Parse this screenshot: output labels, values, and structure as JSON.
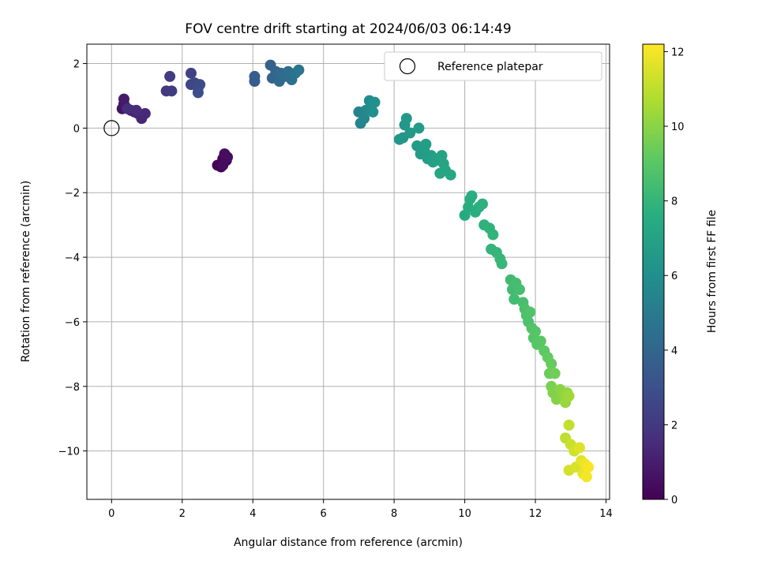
{
  "chart_data": {
    "type": "scatter",
    "title": "FOV centre drift starting at 2024/06/03 06:14:49",
    "xlabel": "Angular distance from reference (arcmin)",
    "ylabel": "Rotation from reference (arcmin)",
    "xlim": [
      -0.7,
      14.1
    ],
    "ylim": [
      -11.5,
      2.6
    ],
    "xticks": [
      0,
      2,
      4,
      6,
      8,
      10,
      12,
      14
    ],
    "yticks": [
      2,
      0,
      -2,
      -4,
      -6,
      -8,
      -10
    ],
    "grid": true,
    "legend": {
      "placement": "top-right",
      "entries": [
        "Reference platepar"
      ]
    },
    "reference_point": {
      "x": 0,
      "y": 0,
      "label": "Reference platepar"
    },
    "colorbar": {
      "label": "Hours from first FF file",
      "range": [
        0,
        12.2
      ],
      "ticks": [
        0,
        2,
        4,
        6,
        8,
        10,
        12
      ],
      "colormap": "viridis"
    },
    "points": [
      [
        3.0,
        -1.15,
        0.1
      ],
      [
        3.1,
        -1.2,
        0.15
      ],
      [
        3.15,
        -0.95,
        0.2
      ],
      [
        3.2,
        -0.85,
        0.25
      ],
      [
        3.25,
        -1.0,
        0.3
      ],
      [
        3.15,
        -1.15,
        0.35
      ],
      [
        3.28,
        -0.9,
        0.4
      ],
      [
        3.2,
        -0.8,
        0.45
      ],
      [
        0.3,
        0.6,
        0.6
      ],
      [
        0.35,
        0.75,
        0.7
      ],
      [
        0.4,
        0.65,
        0.8
      ],
      [
        0.35,
        0.9,
        0.9
      ],
      [
        0.55,
        0.55,
        1.0
      ],
      [
        0.65,
        0.5,
        1.1
      ],
      [
        0.75,
        0.45,
        1.2
      ],
      [
        0.85,
        0.3,
        1.3
      ],
      [
        0.95,
        0.45,
        1.4
      ],
      [
        0.7,
        0.55,
        1.5
      ],
      [
        0.45,
        0.6,
        1.55
      ],
      [
        1.55,
        1.15,
        2.0
      ],
      [
        1.7,
        1.15,
        2.1
      ],
      [
        1.65,
        1.6,
        2.2
      ],
      [
        2.25,
        1.7,
        2.4
      ],
      [
        2.25,
        1.35,
        2.5
      ],
      [
        2.35,
        1.4,
        2.6
      ],
      [
        2.45,
        1.25,
        2.7
      ],
      [
        2.5,
        1.35,
        2.8
      ],
      [
        2.45,
        1.1,
        2.9
      ],
      [
        4.05,
        1.45,
        3.5
      ],
      [
        4.05,
        1.6,
        3.6
      ],
      [
        4.5,
        1.95,
        3.8
      ],
      [
        4.55,
        1.55,
        3.9
      ],
      [
        4.65,
        1.75,
        4.0
      ],
      [
        4.75,
        1.45,
        4.1
      ],
      [
        4.8,
        1.7,
        4.2
      ],
      [
        4.9,
        1.6,
        4.3
      ],
      [
        5.0,
        1.75,
        4.4
      ],
      [
        5.1,
        1.5,
        4.5
      ],
      [
        5.2,
        1.7,
        4.6
      ],
      [
        5.3,
        1.8,
        4.7
      ],
      [
        7.0,
        0.5,
        5.4
      ],
      [
        7.05,
        0.15,
        5.5
      ],
      [
        7.15,
        0.3,
        5.6
      ],
      [
        7.2,
        0.55,
        5.7
      ],
      [
        7.3,
        0.85,
        5.8
      ],
      [
        7.35,
        0.7,
        5.9
      ],
      [
        7.4,
        0.5,
        6.0
      ],
      [
        7.45,
        0.8,
        6.1
      ],
      [
        8.15,
        -0.35,
        6.3
      ],
      [
        8.25,
        -0.3,
        6.35
      ],
      [
        8.3,
        0.1,
        6.4
      ],
      [
        8.35,
        0.3,
        6.45
      ],
      [
        8.45,
        -0.15,
        6.5
      ],
      [
        8.65,
        -0.55,
        6.55
      ],
      [
        8.7,
        0.0,
        6.6
      ],
      [
        8.75,
        -0.8,
        6.65
      ],
      [
        8.85,
        -0.65,
        6.7
      ],
      [
        8.9,
        -0.5,
        6.75
      ],
      [
        8.95,
        -0.95,
        6.8
      ],
      [
        9.05,
        -0.85,
        6.85
      ],
      [
        9.1,
        -1.05,
        6.9
      ],
      [
        9.2,
        -0.95,
        6.95
      ],
      [
        9.3,
        -1.0,
        7.0
      ],
      [
        9.35,
        -0.85,
        7.05
      ],
      [
        9.4,
        -1.1,
        7.1
      ],
      [
        9.45,
        -1.3,
        7.15
      ],
      [
        9.3,
        -1.4,
        7.2
      ],
      [
        9.6,
        -1.45,
        7.25
      ],
      [
        10.0,
        -2.7,
        7.4
      ],
      [
        10.1,
        -2.45,
        7.5
      ],
      [
        10.15,
        -2.2,
        7.55
      ],
      [
        10.2,
        -2.1,
        7.6
      ],
      [
        10.3,
        -2.6,
        7.65
      ],
      [
        10.4,
        -2.45,
        7.7
      ],
      [
        10.5,
        -2.35,
        7.75
      ],
      [
        10.55,
        -3.0,
        7.8
      ],
      [
        10.7,
        -3.1,
        7.85
      ],
      [
        10.8,
        -3.3,
        7.9
      ],
      [
        10.75,
        -3.75,
        7.95
      ],
      [
        10.9,
        -3.85,
        8.0
      ],
      [
        11.0,
        -4.05,
        8.05
      ],
      [
        11.05,
        -4.2,
        8.1
      ],
      [
        11.3,
        -4.7,
        8.3
      ],
      [
        11.35,
        -5.0,
        8.35
      ],
      [
        11.4,
        -5.3,
        8.4
      ],
      [
        11.45,
        -4.8,
        8.45
      ],
      [
        11.55,
        -5.0,
        8.5
      ],
      [
        11.65,
        -5.4,
        8.55
      ],
      [
        11.7,
        -5.6,
        8.6
      ],
      [
        11.75,
        -5.8,
        8.65
      ],
      [
        11.8,
        -6.0,
        8.7
      ],
      [
        11.85,
        -5.7,
        8.75
      ],
      [
        11.9,
        -6.2,
        8.8
      ],
      [
        11.95,
        -6.5,
        8.85
      ],
      [
        12.0,
        -6.3,
        8.9
      ],
      [
        12.05,
        -6.7,
        8.95
      ],
      [
        12.15,
        -6.6,
        9.0
      ],
      [
        12.25,
        -6.9,
        9.1
      ],
      [
        12.35,
        -7.1,
        9.2
      ],
      [
        12.45,
        -7.3,
        9.3
      ],
      [
        12.4,
        -7.6,
        9.4
      ],
      [
        12.55,
        -7.6,
        9.5
      ],
      [
        12.45,
        -8.0,
        9.7
      ],
      [
        12.5,
        -8.2,
        9.8
      ],
      [
        12.6,
        -8.4,
        9.9
      ],
      [
        12.7,
        -8.1,
        10.0
      ],
      [
        12.8,
        -8.3,
        10.1
      ],
      [
        12.9,
        -8.2,
        10.2
      ],
      [
        12.85,
        -8.5,
        10.3
      ],
      [
        12.95,
        -8.3,
        10.4
      ],
      [
        12.85,
        -9.6,
        11.0
      ],
      [
        12.95,
        -9.2,
        11.1
      ],
      [
        13.0,
        -9.8,
        11.2
      ],
      [
        13.1,
        -10.0,
        11.3
      ],
      [
        12.95,
        -10.6,
        11.4
      ],
      [
        13.15,
        -10.5,
        11.5
      ],
      [
        13.25,
        -9.9,
        11.6
      ],
      [
        13.3,
        -10.3,
        11.7
      ],
      [
        13.35,
        -10.7,
        11.8
      ],
      [
        13.4,
        -10.4,
        11.9
      ],
      [
        13.45,
        -10.8,
        12.0
      ],
      [
        13.5,
        -10.5,
        12.1
      ]
    ]
  }
}
